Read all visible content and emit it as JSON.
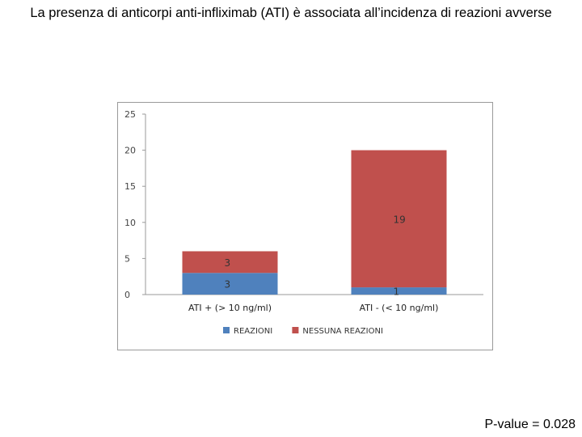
{
  "slide": {
    "title": "La presenza di anticorpi anti-infliximab (ATI) è associata all’incidenza di reazioni avverse",
    "pvalue": "P-value = 0.028"
  },
  "chart_data": {
    "type": "bar",
    "stacked": true,
    "categories": [
      "ATI + (> 10 ng/ml)",
      "ATI -  (< 10 ng/ml)"
    ],
    "series": [
      {
        "name": "REAZIONI",
        "values": [
          3,
          1
        ],
        "color": "#4f81bd"
      },
      {
        "name": "NESSUNA REAZIONI",
        "values": [
          3,
          19
        ],
        "color": "#c0504d"
      }
    ],
    "ylim": [
      0,
      25
    ],
    "yticks": [
      0,
      5,
      10,
      15,
      20,
      25
    ],
    "grid": false,
    "legend": "bottom"
  }
}
